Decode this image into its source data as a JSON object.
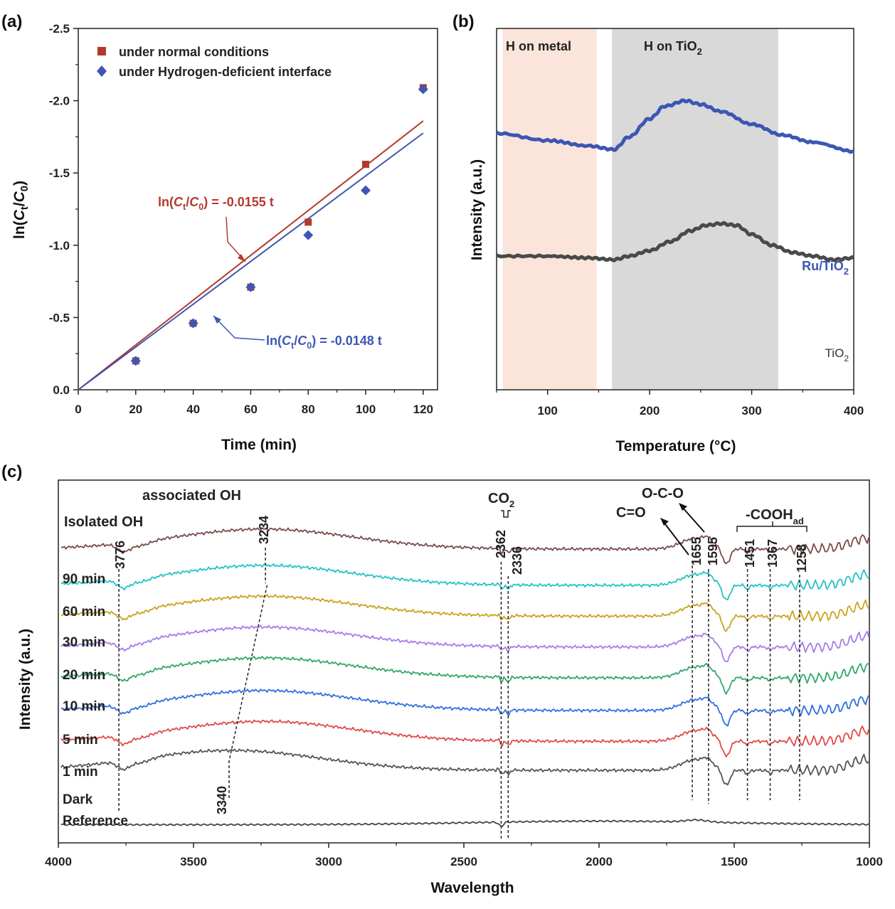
{
  "figure": {
    "panel_a_label": "(a)",
    "panel_b_label": "(b)",
    "panel_c_label": "(c)"
  },
  "chart_data": [
    {
      "id": "a",
      "type": "scatter",
      "xlabel": "Time (min)",
      "ylabel": "ln(Ct/C0)",
      "ylabel_parts": [
        "ln(",
        "C",
        "t",
        "/",
        "C",
        "0",
        ")"
      ],
      "xlim": [
        0,
        125
      ],
      "ylim": [
        0,
        -2.5
      ],
      "y_reversed": true,
      "xticks": [
        0,
        20,
        40,
        60,
        80,
        100,
        120
      ],
      "yticks": [
        0.0,
        -0.5,
        -1.0,
        -1.5,
        -2.0,
        -2.5
      ],
      "ytick_labels": [
        "0.0",
        "-0.5",
        "-1.0",
        "-1.5",
        "-2.0",
        "-2.5"
      ],
      "legend_position": "top-left",
      "series": [
        {
          "name": "under normal conditions",
          "color": "#b23a2b",
          "marker": "square",
          "x": [
            20,
            40,
            60,
            80,
            100,
            120
          ],
          "y": [
            -0.2,
            -0.46,
            -0.71,
            -1.16,
            -1.56,
            -2.09
          ],
          "fit_slope": -0.0155,
          "fit_label": "ln(Ct/C0) = -0.0155 t",
          "fit_label_parts": [
            "ln(",
            "C",
            "t",
            "/",
            "C",
            "0",
            ") = -0.0155 t"
          ]
        },
        {
          "name": "under Hydrogen-deficient interface",
          "color": "#3d56b3",
          "marker": "diamond",
          "x": [
            20,
            40,
            60,
            80,
            100,
            120
          ],
          "y": [
            -0.2,
            -0.46,
            -0.71,
            -1.07,
            -1.38,
            -2.08
          ],
          "fit_slope": -0.0148,
          "fit_label": "ln(Ct/C0) = -0.0148 t",
          "fit_label_parts": [
            "ln(",
            "C",
            "t",
            "/",
            "C",
            "0",
            ") = -0.0148 t"
          ]
        }
      ]
    },
    {
      "id": "b",
      "type": "line",
      "xlabel": "Temperature (°C)",
      "ylabel": "Intensity (a.u.)",
      "xlim": [
        50,
        400
      ],
      "xticks": [
        100,
        200,
        300,
        400
      ],
      "regions": [
        {
          "label": "H on metal",
          "from": 56,
          "to": 148,
          "color": "#fbe5da"
        },
        {
          "label": "H on TiO2",
          "label_parts": [
            "H on TiO",
            "2"
          ],
          "from": 163,
          "to": 326,
          "color": "#d9d9d9"
        }
      ],
      "series": [
        {
          "name": "Ru/TiO2",
          "name_parts": [
            "Ru/TiO",
            "2"
          ],
          "color": "#3d56b3",
          "x": [
            50,
            100,
            140,
            165,
            180,
            200,
            215,
            235,
            250,
            270,
            300,
            330,
            360,
            400
          ],
          "y": [
            0.71,
            0.69,
            0.675,
            0.665,
            0.7,
            0.75,
            0.785,
            0.8,
            0.79,
            0.77,
            0.735,
            0.705,
            0.685,
            0.66
          ]
        },
        {
          "name": "TiO2",
          "name_parts": [
            "TiO",
            "2"
          ],
          "color": "#4a4a4a",
          "x": [
            50,
            100,
            140,
            165,
            180,
            200,
            220,
            240,
            255,
            270,
            285,
            300,
            320,
            340,
            360,
            380,
            400
          ],
          "y": [
            0.37,
            0.37,
            0.365,
            0.36,
            0.37,
            0.385,
            0.41,
            0.44,
            0.455,
            0.46,
            0.455,
            0.43,
            0.4,
            0.38,
            0.37,
            0.36,
            0.365
          ]
        }
      ]
    },
    {
      "id": "c",
      "type": "line",
      "xlabel": "Wavelength",
      "ylabel": "Intensity (a.u.)",
      "xlim": [
        4000,
        1000
      ],
      "x_reversed": true,
      "xticks": [
        4000,
        3500,
        3000,
        2500,
        2000,
        1500,
        1000
      ],
      "series": [
        {
          "name": "90 min",
          "color": "#7b4a4a",
          "offset": 0.83
        },
        {
          "name": "60 min",
          "color": "#22c4c4",
          "offset": 0.73
        },
        {
          "name": "30 min",
          "color": "#c9a320",
          "offset": 0.645
        },
        {
          "name": "20 min",
          "color": "#a77be8",
          "offset": 0.56
        },
        {
          "name": "10 min",
          "color": "#2fa86a",
          "offset": 0.475
        },
        {
          "name": "5 min",
          "color": "#2f6fe0",
          "offset": 0.385
        },
        {
          "name": "1 min",
          "color": "#e04a4a",
          "offset": 0.3
        },
        {
          "name": "Dark",
          "color": "#555555",
          "offset": 0.22
        },
        {
          "name": "Reference",
          "color": "#444444",
          "offset": 0.05,
          "flat": true
        }
      ],
      "peak_lines": [
        3776,
        3234,
        2362,
        2336,
        1655,
        1595,
        1451,
        1367,
        1258
      ],
      "peak_labels": [
        "3776",
        "3234",
        "2362",
        "2336",
        "1655",
        "1595",
        "1451",
        "1367",
        "1258",
        "3340"
      ],
      "annotations": {
        "isolated_oh": "Isolated OH",
        "associated_oh": "associated OH",
        "co2": "CO",
        "co2_sub": "2",
        "c_o": "C=O",
        "o_c_o": "O-C-O",
        "cooh": "-COOH",
        "cooh_sub": "ad"
      }
    }
  ]
}
